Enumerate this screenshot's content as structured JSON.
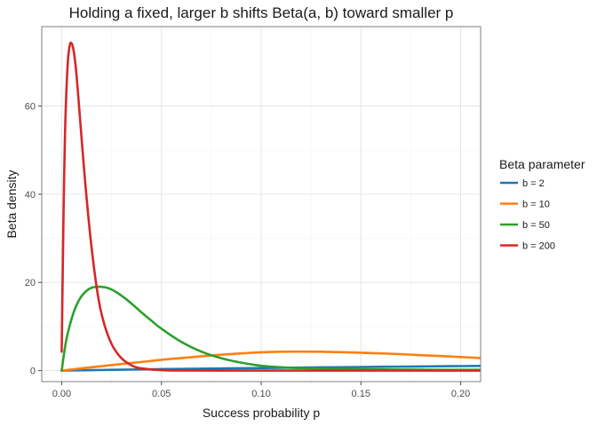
{
  "chart_data": {
    "type": "line",
    "title": "Holding a fixed, larger b shifts Beta(a, b) toward smaller p",
    "xlabel": "Success probability p",
    "ylabel": "Beta density",
    "xlim": [
      -0.01,
      0.21
    ],
    "ylim": [
      -2.5,
      78
    ],
    "x_ticks": [
      0.0,
      0.05,
      0.1,
      0.15,
      0.2
    ],
    "x_tick_labels": [
      "0.00",
      "0.05",
      "0.10",
      "0.15",
      "0.20"
    ],
    "y_ticks": [
      0,
      20,
      40,
      60
    ],
    "y_tick_labels": [
      "0",
      "20",
      "40",
      "60"
    ],
    "grid": true,
    "legend": {
      "title": "Beta parameter",
      "position": "right"
    },
    "x_max_data": 0.21,
    "series": [
      {
        "name": "b = 2",
        "color": "#1f77b4",
        "x": [
          0.0,
          0.01,
          0.02,
          0.03,
          0.04,
          0.05,
          0.06,
          0.08,
          0.1,
          0.12,
          0.14,
          0.16,
          0.18,
          0.2,
          0.21
        ],
        "y": [
          0.0,
          0.07,
          0.14,
          0.21,
          0.27,
          0.33,
          0.39,
          0.49,
          0.59,
          0.68,
          0.77,
          0.85,
          0.94,
          1.02,
          1.06
        ]
      },
      {
        "name": "b = 10",
        "color": "#ff7f0e",
        "x": [
          0.0,
          0.005,
          0.01,
          0.02,
          0.03,
          0.04,
          0.05,
          0.06,
          0.07,
          0.08,
          0.09,
          0.1,
          0.11,
          0.12,
          0.13,
          0.14,
          0.15,
          0.16,
          0.17,
          0.18,
          0.19,
          0.2,
          0.21
        ],
        "y": [
          0.0,
          0.26,
          0.51,
          1.0,
          1.5,
          1.95,
          2.45,
          2.85,
          3.25,
          3.6,
          3.9,
          4.15,
          4.28,
          4.3,
          4.28,
          4.18,
          4.05,
          3.9,
          3.72,
          3.5,
          3.3,
          3.08,
          2.85
        ]
      },
      {
        "name": "b = 50",
        "color": "#2ca02c",
        "x": [
          0.0,
          0.002,
          0.004,
          0.006,
          0.008,
          0.01,
          0.013,
          0.016,
          0.02,
          0.024,
          0.028,
          0.032,
          0.036,
          0.04,
          0.045,
          0.05,
          0.06,
          0.07,
          0.08,
          0.09,
          0.1,
          0.11,
          0.12,
          0.14,
          0.16,
          0.18,
          0.21
        ],
        "y": [
          0.0,
          6.2,
          10.2,
          13.2,
          15.4,
          16.9,
          18.3,
          18.9,
          19.0,
          18.6,
          17.6,
          16.3,
          14.8,
          13.2,
          11.3,
          9.5,
          6.5,
          4.3,
          2.8,
          1.8,
          1.1,
          0.75,
          0.55,
          0.35,
          0.25,
          0.2,
          0.18
        ]
      },
      {
        "name": "b = 200",
        "color": "#d62728",
        "x": [
          0.0,
          0.0005,
          0.001,
          0.0015,
          0.002,
          0.003,
          0.004,
          0.005,
          0.006,
          0.007,
          0.008,
          0.01,
          0.012,
          0.014,
          0.016,
          0.018,
          0.02,
          0.023,
          0.026,
          0.03,
          0.035,
          0.04,
          0.05,
          0.06,
          0.08,
          0.1,
          0.15,
          0.21
        ],
        "y": [
          4.3,
          22.0,
          38.0,
          50.0,
          59.0,
          69.5,
          73.7,
          74.2,
          72.5,
          69.0,
          64.0,
          52.5,
          41.5,
          32.0,
          24.0,
          17.5,
          12.8,
          8.2,
          5.2,
          2.8,
          1.2,
          0.5,
          0.1,
          0.02,
          0.0,
          0.0,
          0.0,
          0.0
        ]
      }
    ]
  }
}
